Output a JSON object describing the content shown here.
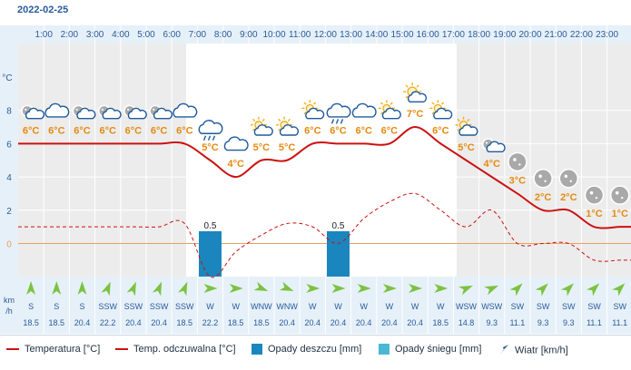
{
  "date": "2022-02-25",
  "hours": [
    "1:00",
    "2:00",
    "3:00",
    "4:00",
    "5:00",
    "6:00",
    "7:00",
    "8:00",
    "9:00",
    "10:00",
    "11:00",
    "12:00",
    "13:00",
    "14:00",
    "15:00",
    "16:00",
    "17:00",
    "18:00",
    "19:00",
    "20:00",
    "21:00",
    "22:00",
    "23:00"
  ],
  "units": {
    "temp_axis": "°C",
    "wind_axis_top": "km",
    "wind_axis_bottom": "/h"
  },
  "conditions": [
    "night-partly-cloudy",
    "cloudy",
    "night-partly-cloudy",
    "night-partly-cloudy",
    "night-partly-cloudy",
    "night-partly-cloudy",
    "cloudy",
    "rain",
    "cloudy",
    "partly-sunny",
    "partly-sunny",
    "partly-sunny",
    "rain",
    "cloudy",
    "partly-sunny",
    "sunny-partly-cloudy",
    "partly-sunny",
    "partly-sunny",
    "night-partly-cloudy",
    "night-clear",
    "night-clear",
    "night-clear",
    "night-clear",
    "night-clear"
  ],
  "chart_data": {
    "type": "line",
    "x": [
      "0:30",
      "1:30",
      "2:30",
      "3:30",
      "4:30",
      "5:30",
      "6:30",
      "7:30",
      "8:30",
      "9:30",
      "10:30",
      "11:30",
      "12:30",
      "13:30",
      "14:30",
      "15:30",
      "16:30",
      "17:30",
      "18:30",
      "19:30",
      "20:30",
      "21:30",
      "22:30",
      "23:30"
    ],
    "ylim": [
      -2,
      10
    ],
    "yticks": [
      0,
      2,
      4,
      6,
      8
    ],
    "series": [
      {
        "name": "Temperatura [°C]",
        "color": "#cc1111",
        "style": "solid",
        "values": [
          6,
          6,
          6,
          6,
          6,
          6,
          6,
          5,
          4,
          5,
          5,
          6,
          6,
          6,
          6,
          7,
          6,
          5,
          4,
          3,
          2,
          2,
          1,
          1
        ]
      },
      {
        "name": "Temp. odczuwalna [°C]",
        "color": "#cc1111",
        "style": "dashed",
        "values": [
          1.0,
          1.0,
          1.0,
          1.0,
          1.0,
          1.0,
          1.2,
          -2.0,
          -0.5,
          0.5,
          1.2,
          1.0,
          0.0,
          1.5,
          2.5,
          3.0,
          2.0,
          1.0,
          2.0,
          0.0,
          0.0,
          0.0,
          -1.0,
          -1.0
        ]
      }
    ],
    "temp_labels": [
      "6°C",
      "6°C",
      "6°C",
      "6°C",
      "6°C",
      "6°C",
      "6°C",
      "5°C",
      "4°C",
      "5°C",
      "5°C",
      "6°C",
      "6°C",
      "6°C",
      "6°C",
      "7°C",
      "6°C",
      "5°C",
      "4°C",
      "3°C",
      "2°C",
      "2°C",
      "1°C",
      "1°C"
    ],
    "rain_mm": [
      {
        "index": 7,
        "value": 0.5,
        "label": "0.5"
      },
      {
        "index": 12,
        "value": 0.5,
        "label": "0.5"
      }
    ],
    "wind": {
      "directions": [
        "S",
        "S",
        "S",
        "SSW",
        "SSW",
        "SSW",
        "SSW",
        "W",
        "W",
        "WNW",
        "WNW",
        "W",
        "W",
        "W",
        "W",
        "W",
        "W",
        "WSW",
        "WSW",
        "SW",
        "SW",
        "SW",
        "SW",
        "SW"
      ],
      "angles_deg": [
        0,
        0,
        0,
        22,
        22,
        22,
        22,
        90,
        90,
        112,
        112,
        90,
        90,
        90,
        90,
        90,
        90,
        67,
        67,
        45,
        45,
        45,
        45,
        45
      ],
      "speeds": [
        "18.5",
        "18.5",
        "20.4",
        "22.2",
        "20.4",
        "20.4",
        "18.5",
        "22.2",
        "18.5",
        "18.5",
        "20.4",
        "20.4",
        "20.4",
        "20.4",
        "20.4",
        "20.4",
        "18.5",
        "14.8",
        "9.3",
        "11.1",
        "9.3",
        "9.3",
        "11.1",
        "11.1"
      ]
    }
  },
  "legend": {
    "temperature": "Temperatura [°C]",
    "feels_like": "Temp. odczuwalna [°C]",
    "rain": "Opady deszczu [mm]",
    "snow": "Opady śniegu [mm]",
    "wind": "Wiatr [km/h]",
    "colors": {
      "temp": "#cc1111",
      "rain": "#1b86bd",
      "snow": "#4ab8d3",
      "wind": "#2a5b9c",
      "zero": "#e8a060",
      "temp_label": "#e58a10"
    }
  }
}
